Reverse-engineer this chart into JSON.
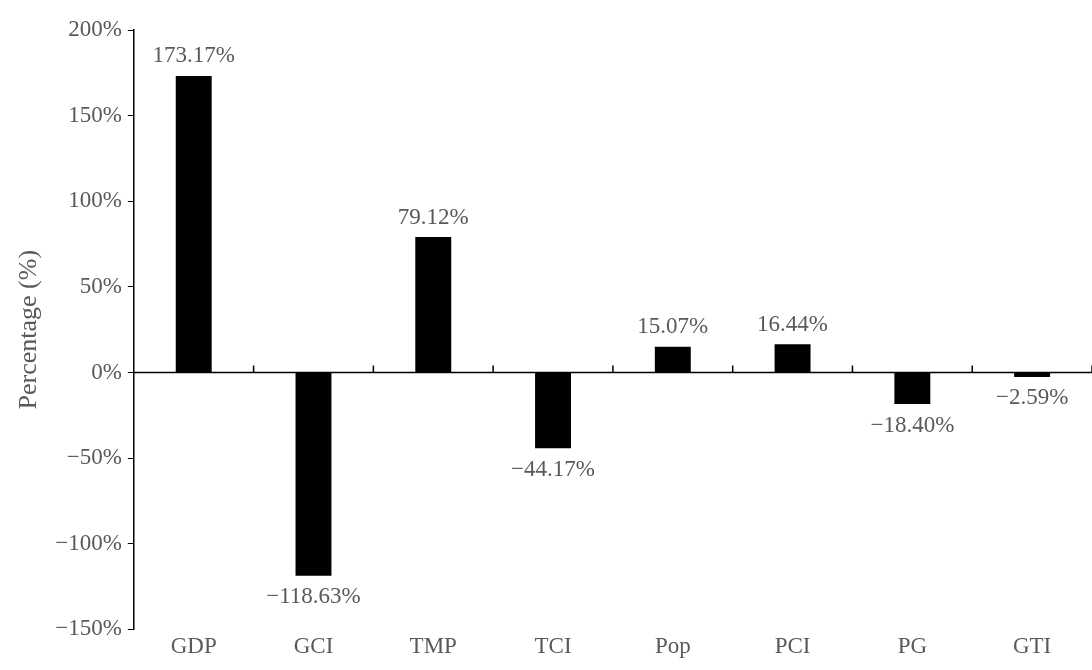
{
  "chart_data": {
    "type": "bar",
    "ylabel": "Percentage (%)",
    "categories": [
      "GDP",
      "GCI",
      "TMP",
      "TCI",
      "Pop",
      "PCI",
      "PG",
      "GTI"
    ],
    "values": [
      173.17,
      -118.63,
      79.12,
      -44.17,
      15.07,
      16.44,
      -18.4,
      -2.59
    ],
    "value_labels": [
      "173.17%",
      "−118.63%",
      "79.12%",
      "−44.17%",
      "15.07%",
      "16.44%",
      "−18.40%",
      "−2.59%"
    ],
    "color": "#000000",
    "ylim": [
      -150,
      200
    ],
    "yticks": [
      {
        "value": -150,
        "label": "−150%"
      },
      {
        "value": -100,
        "label": "−100%"
      },
      {
        "value": -50,
        "label": "−50%"
      },
      {
        "value": 0,
        "label": "0%"
      },
      {
        "value": 50,
        "label": "50%"
      },
      {
        "value": 100,
        "label": "100%"
      },
      {
        "value": 150,
        "label": "150%"
      },
      {
        "value": 200,
        "label": "200%"
      }
    ],
    "legend": false
  }
}
